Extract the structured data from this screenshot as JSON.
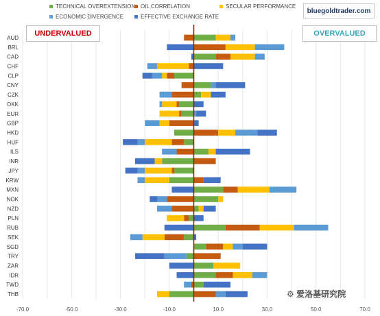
{
  "chart_data": {
    "type": "bar",
    "orientation": "horizontal",
    "stacked": true,
    "xlim": [
      -70,
      70
    ],
    "xticks": [
      "-70.0",
      "-50.0",
      "-30.0",
      "-10.0",
      "10.0",
      "30.0",
      "50.0",
      "70.0"
    ],
    "categories": [
      "AUD",
      "BRL",
      "CAD",
      "CHF",
      "CLP",
      "CNY",
      "CZK",
      "DKK",
      "EUR",
      "GBP",
      "HKD",
      "HUF",
      "ILS",
      "INR",
      "JPY",
      "KRW",
      "MXN",
      "NOK",
      "NZD",
      "PLN",
      "RUB",
      "SEK",
      "SGD",
      "TRY",
      "ZAR",
      "IDR",
      "TWD",
      "THB"
    ],
    "series": [
      {
        "name": "TECHNICAL OVEREXTENSION",
        "color": "#70ad47",
        "values": [
          9,
          0,
          9,
          0,
          -8,
          7,
          3,
          -6,
          -5,
          0,
          -8,
          -4,
          6,
          -13,
          -8,
          -10,
          12,
          10,
          2,
          -2,
          13,
          -4,
          5,
          -3,
          8,
          9,
          4,
          -10
        ]
      },
      {
        "name": "OIL CORRELATION",
        "color": "#c55a11",
        "values": [
          -4,
          13,
          6,
          -2,
          -3,
          -5,
          -9,
          -1,
          -1,
          -10,
          10,
          -5,
          -7,
          9,
          -1,
          4,
          6,
          -11,
          -9,
          -2,
          14,
          -8,
          7,
          11,
          0,
          7,
          -1,
          9
        ]
      },
      {
        "name": "SECULAR PERFORMANCE",
        "color": "#ffc000",
        "values": [
          6,
          12,
          10,
          -13,
          -2,
          0,
          4,
          -6,
          -8,
          -4,
          7,
          -11,
          3,
          -3,
          -11,
          -10,
          13,
          2,
          2,
          -7,
          14,
          -9,
          4,
          0,
          11,
          8,
          0,
          -5
        ]
      },
      {
        "name": "ECONOMIC DIVERGENCE",
        "color": "#5b9bd5",
        "values": [
          2,
          12,
          4,
          -4,
          -4,
          2,
          -5,
          -1,
          1,
          -6,
          9,
          -3,
          -6,
          0,
          -3,
          -3,
          11,
          -4,
          -6,
          0,
          14,
          -5,
          4,
          -9,
          0,
          6,
          -3,
          4
        ]
      },
      {
        "name": "EFFECTIVE EXCHANGE RATE",
        "color": "#4472c4",
        "values": [
          0,
          -11,
          -1,
          12,
          -4,
          12,
          6,
          4,
          4,
          2,
          8,
          -6,
          14,
          -8,
          -5,
          7,
          -9,
          -3,
          5,
          4,
          -12,
          1,
          10,
          -12,
          -10,
          -7,
          11,
          9
        ]
      }
    ]
  },
  "labels": {
    "undervalued": "UNDERVALUED",
    "overvalued": "OVERVALUED",
    "brand": "bluegoldtrader.com",
    "watermark": "⚙ 爱洛基研究院"
  }
}
